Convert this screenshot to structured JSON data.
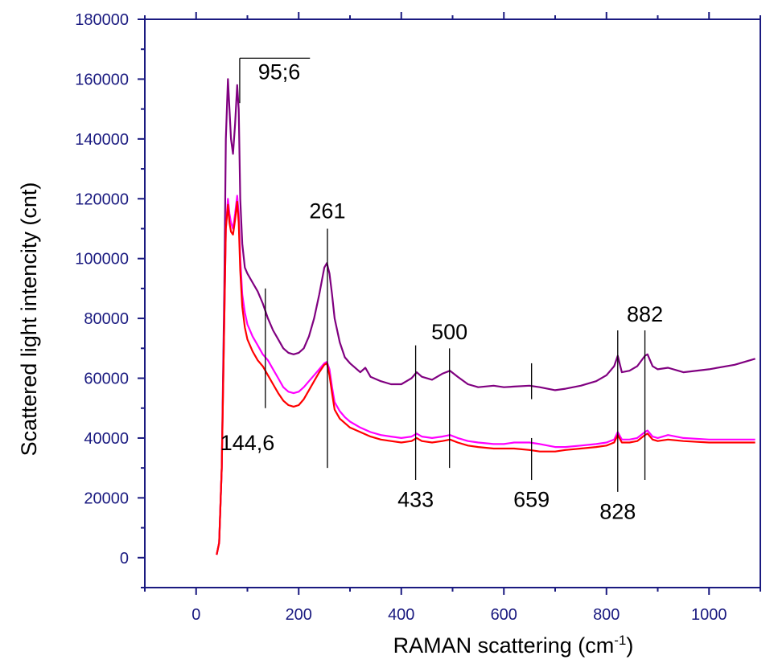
{
  "chart_data": {
    "type": "line",
    "title": "",
    "xlabel": "RAMAN scattering (cm",
    "xlabel_superscript": "-1",
    "xlabel_suffix": ")",
    "ylabel": "Scattered light intencity (cnt)",
    "xlim": [
      -100,
      1100
    ],
    "ylim": [
      -10000,
      180000
    ],
    "xticks": [
      0,
      200,
      400,
      600,
      800,
      1000
    ],
    "yticks": [
      0,
      20000,
      40000,
      60000,
      80000,
      100000,
      120000,
      140000,
      160000,
      180000
    ],
    "grid": false,
    "legend": "none",
    "colors": {
      "axis": "#1a1a80",
      "tick_text": "#1a1a80",
      "annotation": "#000000"
    },
    "series": [
      {
        "color": "#800080",
        "x": [
          40,
          45,
          50,
          55,
          58,
          62,
          65,
          68,
          72,
          76,
          80,
          83,
          86,
          90,
          95,
          100,
          110,
          120,
          130,
          140,
          150,
          160,
          170,
          180,
          190,
          200,
          210,
          220,
          230,
          240,
          250,
          255,
          260,
          265,
          270,
          280,
          290,
          300,
          320,
          330,
          340,
          360,
          380,
          400,
          420,
          430,
          440,
          460,
          480,
          495,
          510,
          530,
          550,
          580,
          600,
          620,
          650,
          670,
          700,
          720,
          750,
          780,
          800,
          815,
          822,
          830,
          845,
          860,
          875,
          880,
          890,
          900,
          920,
          950,
          1000,
          1050,
          1090
        ],
        "y": [
          1000,
          5000,
          30000,
          90000,
          140000,
          160000,
          150000,
          140000,
          135000,
          145000,
          158000,
          150000,
          120000,
          105000,
          97000,
          95000,
          92000,
          89000,
          85000,
          80000,
          76000,
          73000,
          70000,
          68500,
          68000,
          68500,
          70000,
          74000,
          80000,
          88000,
          97000,
          98500,
          95000,
          88000,
          80000,
          72000,
          67000,
          65000,
          62000,
          63500,
          60500,
          59000,
          58000,
          58000,
          60000,
          62000,
          60500,
          59500,
          61500,
          62500,
          60500,
          58000,
          57000,
          57500,
          57000,
          57200,
          57500,
          57000,
          56000,
          56500,
          57500,
          59000,
          61000,
          64000,
          67500,
          62000,
          62500,
          64000,
          67500,
          68000,
          64000,
          63000,
          63500,
          62000,
          63000,
          64500,
          66500
        ]
      },
      {
        "color": "#ff00ff",
        "x": [
          40,
          45,
          50,
          55,
          58,
          62,
          65,
          68,
          72,
          76,
          80,
          83,
          86,
          90,
          95,
          100,
          110,
          120,
          130,
          140,
          150,
          160,
          170,
          180,
          190,
          200,
          210,
          220,
          230,
          240,
          250,
          255,
          260,
          265,
          270,
          280,
          290,
          300,
          320,
          340,
          360,
          380,
          400,
          420,
          430,
          440,
          460,
          480,
          495,
          510,
          530,
          550,
          580,
          600,
          620,
          650,
          670,
          700,
          720,
          750,
          780,
          800,
          815,
          822,
          830,
          845,
          860,
          875,
          880,
          890,
          900,
          920,
          950,
          1000,
          1050,
          1090
        ],
        "y": [
          1000,
          5000,
          30000,
          80000,
          110000,
          120000,
          115000,
          112000,
          110000,
          115000,
          121000,
          115000,
          100000,
          88000,
          82000,
          78000,
          74000,
          71000,
          68000,
          66000,
          63000,
          60000,
          57000,
          55500,
          55000,
          55500,
          57000,
          59000,
          61000,
          63000,
          65000,
          65500,
          63000,
          57000,
          52000,
          49000,
          47000,
          45500,
          43500,
          42000,
          41000,
          40500,
          40000,
          40500,
          41500,
          40500,
          40000,
          40500,
          41000,
          40000,
          39000,
          38500,
          38000,
          38000,
          38500,
          38500,
          38000,
          37000,
          37000,
          37500,
          38000,
          38500,
          39500,
          42000,
          39500,
          39500,
          40000,
          42000,
          42500,
          40500,
          40000,
          41000,
          40000,
          39500,
          39500,
          39500
        ]
      },
      {
        "color": "#ff0000",
        "x": [
          40,
          45,
          50,
          55,
          58,
          62,
          65,
          68,
          72,
          76,
          80,
          83,
          86,
          90,
          95,
          100,
          110,
          120,
          130,
          140,
          150,
          160,
          170,
          180,
          190,
          200,
          210,
          220,
          230,
          240,
          250,
          255,
          260,
          265,
          270,
          280,
          290,
          300,
          320,
          340,
          360,
          380,
          400,
          420,
          430,
          440,
          460,
          480,
          495,
          510,
          530,
          550,
          580,
          600,
          620,
          650,
          670,
          700,
          720,
          750,
          780,
          800,
          815,
          822,
          830,
          845,
          860,
          875,
          880,
          890,
          900,
          920,
          950,
          1000,
          1050,
          1090
        ],
        "y": [
          1000,
          5000,
          30000,
          80000,
          110000,
          118000,
          112000,
          109000,
          108000,
          113000,
          119000,
          112000,
          96000,
          84000,
          77000,
          73000,
          69000,
          66000,
          64000,
          61000,
          58000,
          55000,
          52500,
          51000,
          50500,
          51000,
          53000,
          56000,
          59000,
          62000,
          64500,
          65000,
          61000,
          55000,
          49500,
          46500,
          45000,
          43500,
          42000,
          40500,
          39500,
          39000,
          38500,
          39000,
          40000,
          39000,
          38500,
          39000,
          39500,
          38500,
          37500,
          37000,
          36500,
          36500,
          36500,
          36000,
          35500,
          35500,
          36000,
          36500,
          37000,
          37500,
          38500,
          41000,
          38500,
          38500,
          39000,
          41000,
          41500,
          39500,
          39000,
          39500,
          39000,
          38500,
          38500,
          38500
        ]
      }
    ],
    "annotations": [
      {
        "text": "95;6",
        "line_x": 85,
        "bracket_x": [
          85,
          222
        ],
        "line_y": [
          152000,
          167000
        ],
        "label_x": 162,
        "label_y": 160000,
        "anchor": "middle"
      },
      {
        "text": "144,6",
        "line_x": 135,
        "line_y": [
          50000,
          90000
        ],
        "label_x": 100,
        "label_y": 36000,
        "anchor": "middle"
      },
      {
        "text": "261",
        "line_x": 256,
        "line_y": [
          30000,
          110000
        ],
        "label_x": 256,
        "label_y": 113500,
        "anchor": "middle"
      },
      {
        "text": "433",
        "line_x": 428,
        "line_y": [
          26000,
          71000
        ],
        "label_x": 428,
        "label_y": 17000,
        "anchor": "middle"
      },
      {
        "text": "500",
        "line_x": 494,
        "line_y": [
          30000,
          70000
        ],
        "label_x": 494,
        "label_y": 73000,
        "anchor": "middle"
      },
      {
        "text": "659",
        "line_x": 654,
        "line_y": [
          26000,
          40000,
          53000,
          65000
        ],
        "label_x": 654,
        "label_y": 17000,
        "anchor": "middle"
      },
      {
        "text": "828",
        "line_x": 822,
        "line_y": [
          22000,
          76000
        ],
        "label_x": 822,
        "label_y": 13000,
        "anchor": "middle"
      },
      {
        "text": "882",
        "line_x": 875,
        "line_y": [
          26000,
          76000
        ],
        "label_x": 875,
        "label_y": 79000,
        "anchor": "middle"
      }
    ]
  }
}
